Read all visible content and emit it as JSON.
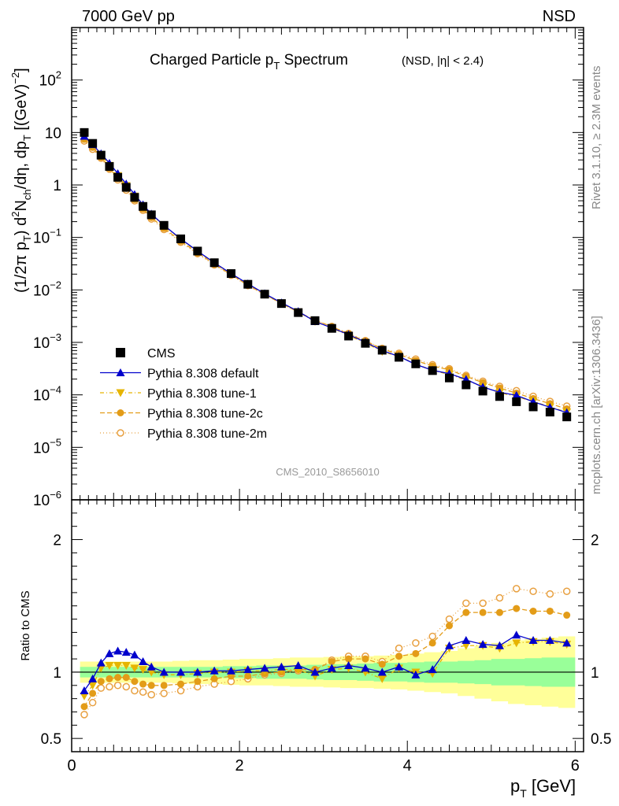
{
  "header": {
    "left": "7000 GeV pp",
    "right": "NSD"
  },
  "side_text": {
    "rivet": "Rivet 3.1.10, ≥ 2.3M events",
    "mcplots": "mcplots.cern.ch [arXiv:1306.3436]"
  },
  "chart_data": [
    {
      "type": "scatter",
      "title": "Charged Particle p_T Spectrum",
      "title_suffix": "(NSD, |η| < 2.4)",
      "ylabel": "(1/2π p_T) d²N_ch/dη, dp_T [(GeV)⁻²]",
      "xlabel": "p_T [GeV]",
      "watermark": "CMS_2010_S8656010",
      "log_y": true,
      "xlim": [
        0,
        6.1
      ],
      "ylim": [
        1e-06,
        1000
      ],
      "x_ticks": [
        "0",
        "2",
        "4",
        "6"
      ],
      "y_ticks": [
        {
          "v": 100,
          "mant": "10",
          "exp": "2"
        },
        {
          "v": 10,
          "mant": "10",
          "exp": ""
        },
        {
          "v": 1,
          "mant": "1",
          "exp": ""
        },
        {
          "v": 0.1,
          "mant": "10",
          "exp": "−1"
        },
        {
          "v": 0.01,
          "mant": "10",
          "exp": "−2"
        },
        {
          "v": 0.001,
          "mant": "10",
          "exp": "−3"
        },
        {
          "v": 0.0001,
          "mant": "10",
          "exp": "−4"
        },
        {
          "v": 1e-05,
          "mant": "10",
          "exp": "−5"
        },
        {
          "v": 1e-06,
          "mant": "10",
          "exp": "−6"
        }
      ],
      "legend_position": "bottom-left",
      "x": [
        0.15,
        0.25,
        0.35,
        0.45,
        0.55,
        0.65,
        0.75,
        0.85,
        0.95,
        1.1,
        1.3,
        1.5,
        1.7,
        1.9,
        2.1,
        2.3,
        2.5,
        2.7,
        2.9,
        3.1,
        3.3,
        3.5,
        3.7,
        3.9,
        4.1,
        4.3,
        4.5,
        4.7,
        4.9,
        5.1,
        5.3,
        5.5,
        5.7,
        5.9
      ],
      "series": [
        {
          "name": "CMS",
          "color": "#000000",
          "marker": "square",
          "values": [
            10.0,
            6.2,
            3.7,
            2.25,
            1.4,
            0.9,
            0.58,
            0.39,
            0.27,
            0.17,
            0.094,
            0.055,
            0.033,
            0.0205,
            0.0128,
            0.0083,
            0.0055,
            0.0037,
            0.0026,
            0.00185,
            0.00132,
            0.00096,
            0.00071,
            0.00052,
            0.00039,
            0.00029,
            0.00021,
            0.000155,
            0.000118,
            9.3e-05,
            7.4e-05,
            5.9e-05,
            4.7e-05,
            3.8e-05
          ]
        },
        {
          "name": "Pythia 8.308 default",
          "color": "#0000cc",
          "marker": "triangle-up",
          "dash": "",
          "values": [
            8.5,
            5.9,
            3.95,
            2.6,
            1.65,
            1.05,
            0.66,
            0.42,
            0.28,
            0.17,
            0.094,
            0.055,
            0.033,
            0.0205,
            0.0131,
            0.0085,
            0.0057,
            0.0039,
            0.0025,
            0.00189,
            0.00141,
            0.00101,
            0.0007,
            0.00054,
            0.00038,
            0.000295,
            0.000254,
            0.000197,
            0.000141,
            0.000112,
            9.8e-05,
            7.4e-05,
            5.8e-05,
            4.6e-05
          ]
        },
        {
          "name": "Pythia 8.308 tune-1",
          "color": "#e6b400",
          "marker": "triangle-down",
          "dash": "5,3,1,3",
          "values": [
            8.2,
            5.6,
            3.8,
            2.35,
            1.5,
            0.97,
            0.61,
            0.4,
            0.27,
            0.165,
            0.092,
            0.054,
            0.033,
            0.0205,
            0.0129,
            0.0084,
            0.0056,
            0.0038,
            0.0025,
            0.00189,
            0.00135,
            0.00098,
            0.00067,
            0.00054,
            0.00039,
            0.00029,
            0.000247,
            0.000191,
            0.000142,
            0.00011,
            9.3e-05,
            7.5e-05,
            5.9e-05,
            4.7e-05
          ]
        },
        {
          "name": "Pythia 8.308 tune-2c",
          "color": "#e39c18",
          "marker": "circle",
          "dash": "6,3",
          "values": [
            7.4,
            5.2,
            3.4,
            2.1,
            1.33,
            0.86,
            0.53,
            0.35,
            0.24,
            0.15,
            0.085,
            0.051,
            0.031,
            0.0195,
            0.0124,
            0.0082,
            0.0055,
            0.0038,
            0.00265,
            0.002,
            0.00145,
            0.00106,
            0.00075,
            0.00059,
            0.00045,
            0.000355,
            0.0003,
            0.000225,
            0.000171,
            0.000135,
            0.000108,
            8.5e-05,
            6.8e-05,
            5.4e-05
          ]
        },
        {
          "name": "Pythia 8.308 tune-2m",
          "color": "#e8a040",
          "marker": "circle-open",
          "dash": "1,3",
          "values": [
            6.9,
            4.8,
            3.25,
            2.0,
            1.25,
            0.8,
            0.5,
            0.33,
            0.225,
            0.142,
            0.081,
            0.049,
            0.03,
            0.019,
            0.0121,
            0.0081,
            0.0055,
            0.0038,
            0.00265,
            0.00201,
            0.00148,
            0.00108,
            0.00077,
            0.00062,
            0.00048,
            0.000375,
            0.000315,
            0.000235,
            0.000182,
            0.000145,
            0.00012,
            9.4e-05,
            7.5e-05,
            6.1e-05
          ]
        }
      ]
    },
    {
      "type": "scatter",
      "ylabel": "Ratio to CMS",
      "xlim": [
        0,
        6.1
      ],
      "ylim": [
        0.4,
        2.3
      ],
      "reference_line": 1,
      "y_ticks": [
        "0.5",
        "1",
        "2"
      ],
      "x": [
        0.15,
        0.25,
        0.35,
        0.45,
        0.55,
        0.65,
        0.75,
        0.85,
        0.95,
        1.1,
        1.3,
        1.5,
        1.7,
        1.9,
        2.1,
        2.3,
        2.5,
        2.7,
        2.9,
        3.1,
        3.3,
        3.5,
        3.7,
        3.9,
        4.1,
        4.3,
        4.5,
        4.7,
        4.9,
        5.1,
        5.3,
        5.5,
        5.7,
        5.9
      ],
      "band_green_halfwidth": [
        0.04,
        0.04,
        0.04,
        0.04,
        0.04,
        0.04,
        0.04,
        0.04,
        0.04,
        0.04,
        0.04,
        0.04,
        0.04,
        0.045,
        0.045,
        0.05,
        0.05,
        0.05,
        0.055,
        0.06,
        0.06,
        0.065,
        0.07,
        0.07,
        0.075,
        0.08,
        0.08,
        0.085,
        0.09,
        0.1,
        0.1,
        0.105,
        0.11,
        0.11
      ],
      "band_yellow_halfwidth": [
        0.08,
        0.08,
        0.08,
        0.08,
        0.08,
        0.08,
        0.08,
        0.08,
        0.08,
        0.08,
        0.085,
        0.09,
        0.09,
        0.095,
        0.1,
        0.1,
        0.105,
        0.11,
        0.11,
        0.115,
        0.12,
        0.12,
        0.125,
        0.13,
        0.14,
        0.15,
        0.16,
        0.18,
        0.2,
        0.22,
        0.24,
        0.25,
        0.26,
        0.27
      ],
      "series": [
        {
          "name": "Pythia 8.308 default",
          "color": "#0000cc",
          "marker": "triangle-up",
          "dash": "",
          "values": [
            0.86,
            0.95,
            1.07,
            1.14,
            1.16,
            1.15,
            1.13,
            1.08,
            1.04,
            1.0,
            1.0,
            1.0,
            1.01,
            1.01,
            1.02,
            1.03,
            1.04,
            1.05,
            1.0,
            1.03,
            1.05,
            1.03,
            1.0,
            1.04,
            0.98,
            1.02,
            1.2,
            1.24,
            1.21,
            1.2,
            1.28,
            1.24,
            1.24,
            1.22
          ]
        },
        {
          "name": "Pythia 8.308 tune-1",
          "color": "#e6b400",
          "marker": "triangle-down",
          "dash": "5,3,1,3",
          "values": [
            0.82,
            0.9,
            1.03,
            1.05,
            1.05,
            1.05,
            1.03,
            1.02,
            1.0,
            0.98,
            0.98,
            0.99,
            1.0,
            1.0,
            1.01,
            1.01,
            1.02,
            1.02,
            0.97,
            1.02,
            1.03,
            1.0,
            0.95,
            1.03,
            1.0,
            0.99,
            1.18,
            1.2,
            1.2,
            1.18,
            1.22,
            1.23,
            1.23,
            1.21
          ]
        },
        {
          "name": "Pythia 8.308 tune-2c",
          "color": "#e39c18",
          "marker": "circle",
          "dash": "6,3",
          "values": [
            0.74,
            0.84,
            0.93,
            0.95,
            0.96,
            0.96,
            0.93,
            0.91,
            0.9,
            0.9,
            0.91,
            0.93,
            0.95,
            0.97,
            0.97,
            0.99,
            1.0,
            1.02,
            1.02,
            1.08,
            1.1,
            1.1,
            1.06,
            1.12,
            1.14,
            1.22,
            1.35,
            1.45,
            1.45,
            1.45,
            1.48,
            1.46,
            1.46,
            1.43
          ]
        },
        {
          "name": "Pythia 8.308 tune-2m",
          "color": "#e8a040",
          "marker": "circle-open",
          "dash": "1,3",
          "values": [
            0.68,
            0.77,
            0.88,
            0.89,
            0.9,
            0.89,
            0.86,
            0.85,
            0.83,
            0.84,
            0.86,
            0.89,
            0.91,
            0.93,
            0.95,
            0.98,
            0.99,
            1.01,
            1.02,
            1.09,
            1.12,
            1.12,
            1.08,
            1.18,
            1.22,
            1.27,
            1.4,
            1.52,
            1.52,
            1.56,
            1.63,
            1.61,
            1.59,
            1.61
          ]
        }
      ]
    }
  ]
}
